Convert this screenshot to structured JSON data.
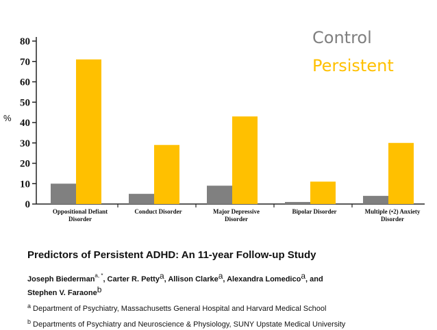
{
  "chart_data": {
    "type": "bar",
    "categories": [
      [
        "Oppositional Defiant",
        "Disorder"
      ],
      [
        "Conduct Disorder"
      ],
      [
        "Major Depressive",
        "Disorder"
      ],
      [
        "Bipolar Disorder"
      ],
      [
        "Multiple (•2) Anxiety",
        "Disorder"
      ]
    ],
    "series": [
      {
        "name": "Control",
        "values": [
          10,
          5,
          9,
          1,
          4
        ],
        "color": "#808080"
      },
      {
        "name": "Persistent",
        "values": [
          71,
          29,
          43,
          11,
          30
        ],
        "color": "#ffc000"
      }
    ],
    "ylabel": "%",
    "ylim": [
      0,
      80
    ],
    "yticks": [
      "0",
      "10",
      "20",
      "30",
      "40",
      "50",
      "60",
      "70",
      "80"
    ],
    "legend_position": "top-right",
    "legend_colors": {
      "Control": "#7f7f7f",
      "Persistent": "#ffc000"
    },
    "grid": false
  },
  "citation": {
    "title": "Predictors of Persistent ADHD: An 11-year Follow-up Study",
    "authors_line1": [
      {
        "name": "Joseph Biederman",
        "sup": "a, *"
      },
      {
        "name": ", Carter R. Petty",
        "sup": "a"
      },
      {
        "name": ", Allison Clarke",
        "sup": "a"
      },
      {
        "name": ", Alexandra Lomedico",
        "sup": "a"
      },
      {
        "name": ", and",
        "sup": ""
      }
    ],
    "authors_line2": {
      "name": "Stephen V. Faraone",
      "sup": "b"
    },
    "affiliations": [
      {
        "sup": "a",
        "text": "Department of Psychiatry, Massachusetts General Hospital and Harvard Medical School"
      },
      {
        "sup": "b",
        "text": "Departments of Psychiatry and Neuroscience & Physiology, SUNY Upstate Medical University"
      }
    ]
  }
}
